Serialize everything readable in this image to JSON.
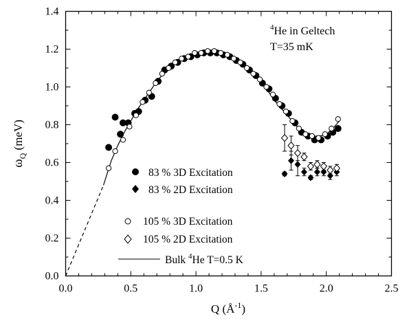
{
  "chart_data": {
    "type": "scatter",
    "title": "",
    "xlabel": "Q (Å",
    "xlabel_exp": "-1",
    "xlabel_close": ")",
    "ylabel": "ω",
    "ylabel_sub": "Q",
    "ylabel_unit": " (meV)",
    "xlim": [
      0,
      2.5
    ],
    "ylim": [
      0,
      1.4
    ],
    "x_ticks": [
      "0.0",
      "0.5",
      "1.0",
      "1.5",
      "2.0",
      "2.5"
    ],
    "y_ticks": [
      "0.0",
      "0.2",
      "0.4",
      "0.6",
      "0.8",
      "1.0",
      "1.2",
      "1.4"
    ],
    "grid": false,
    "legend_position": "lower-left",
    "annotation": {
      "line1_sup": "4",
      "line1_text": "He in Geltech",
      "line2": "T=35 mK"
    },
    "series": [
      {
        "name": "83 % 3D Excitation",
        "marker": "filled-circle",
        "x": [
          0.33,
          0.38,
          0.42,
          0.44,
          0.48,
          0.53,
          0.56,
          0.61,
          0.66,
          0.71,
          0.76,
          0.81,
          0.86,
          0.91,
          0.96,
          1.01,
          1.06,
          1.11,
          1.16,
          1.21,
          1.26,
          1.31,
          1.36,
          1.41,
          1.46,
          1.51,
          1.56,
          1.61,
          1.66,
          1.71,
          1.76,
          1.81,
          1.86,
          1.91,
          1.96,
          2.01,
          2.05,
          2.09
        ],
        "y": [
          0.68,
          0.84,
          0.75,
          0.81,
          0.81,
          0.86,
          0.87,
          0.93,
          0.95,
          1.03,
          1.09,
          1.11,
          1.13,
          1.15,
          1.16,
          1.17,
          1.18,
          1.18,
          1.18,
          1.17,
          1.16,
          1.14,
          1.12,
          1.09,
          1.06,
          1.02,
          0.99,
          0.94,
          0.9,
          0.86,
          0.81,
          0.76,
          0.74,
          0.72,
          0.72,
          0.74,
          0.76,
          0.78
        ]
      },
      {
        "name": "83 % 2D Excitation",
        "marker": "filled-diamond",
        "x": [
          1.68,
          1.73,
          1.78,
          1.83,
          1.88,
          1.93,
          1.98,
          2.03,
          2.08
        ],
        "y": [
          0.54,
          0.61,
          0.59,
          0.55,
          0.52,
          0.55,
          0.55,
          0.53,
          0.55
        ],
        "err": [
          0.01,
          0.05,
          0.06,
          0.02,
          0.01,
          0.02,
          0.02,
          0.02,
          0.02
        ]
      },
      {
        "name": "105 % 3D Excitation",
        "marker": "open-circle",
        "x": [
          0.33,
          0.38,
          0.44,
          0.49,
          0.54,
          0.59,
          0.64,
          0.69,
          0.74,
          0.79,
          0.84,
          0.89,
          0.94,
          0.99,
          1.04,
          1.09,
          1.14,
          1.19,
          1.24,
          1.29,
          1.34,
          1.39,
          1.44,
          1.49,
          1.54,
          1.59,
          1.64,
          1.69,
          1.74,
          1.79,
          1.84,
          1.89,
          1.94,
          1.99,
          2.04,
          2.09
        ],
        "y": [
          0.57,
          0.66,
          0.72,
          0.79,
          0.85,
          0.92,
          0.97,
          1.02,
          1.07,
          1.1,
          1.13,
          1.15,
          1.16,
          1.18,
          1.18,
          1.19,
          1.19,
          1.18,
          1.17,
          1.15,
          1.13,
          1.1,
          1.07,
          1.04,
          1.0,
          0.96,
          0.91,
          0.87,
          0.82,
          0.78,
          0.75,
          0.74,
          0.73,
          0.75,
          0.78,
          0.83
        ]
      },
      {
        "name": "105 % 2D Excitation",
        "marker": "open-diamond",
        "x": [
          1.68,
          1.73,
          1.78,
          1.83,
          1.88,
          1.93,
          1.98,
          2.03,
          2.08
        ],
        "y": [
          0.73,
          0.69,
          0.65,
          0.63,
          0.58,
          0.59,
          0.58,
          0.56,
          0.57
        ],
        "err": [
          0.07,
          0.05,
          0.04,
          0.02,
          0.02,
          0.02,
          0.02,
          0.02,
          0.02
        ]
      },
      {
        "name": "Bulk ",
        "name_sup": "4",
        "name_rest": "He T=0.5 K",
        "marker": "line",
        "x": [
          0.29,
          0.35,
          0.4,
          0.45,
          0.5,
          0.55,
          0.6,
          0.65,
          0.7,
          0.75,
          0.8,
          0.85,
          0.9,
          0.95,
          1.0,
          1.05,
          1.1,
          1.15,
          1.2,
          1.25,
          1.3,
          1.35,
          1.4,
          1.45,
          1.5,
          1.55,
          1.6,
          1.65,
          1.7,
          1.75,
          1.8,
          1.85,
          1.9,
          1.95,
          2.0,
          2.05,
          2.1
        ],
        "y": [
          0.48,
          0.61,
          0.69,
          0.76,
          0.82,
          0.88,
          0.93,
          0.98,
          1.03,
          1.07,
          1.11,
          1.13,
          1.15,
          1.17,
          1.18,
          1.185,
          1.19,
          1.18,
          1.17,
          1.16,
          1.14,
          1.12,
          1.09,
          1.06,
          1.02,
          0.98,
          0.93,
          0.89,
          0.85,
          0.81,
          0.77,
          0.75,
          0.74,
          0.74,
          0.75,
          0.78,
          0.82
        ]
      },
      {
        "name": "",
        "marker": "dashed-line",
        "x": [
          0.0,
          0.29
        ],
        "y": [
          0.0,
          0.48
        ]
      }
    ]
  }
}
